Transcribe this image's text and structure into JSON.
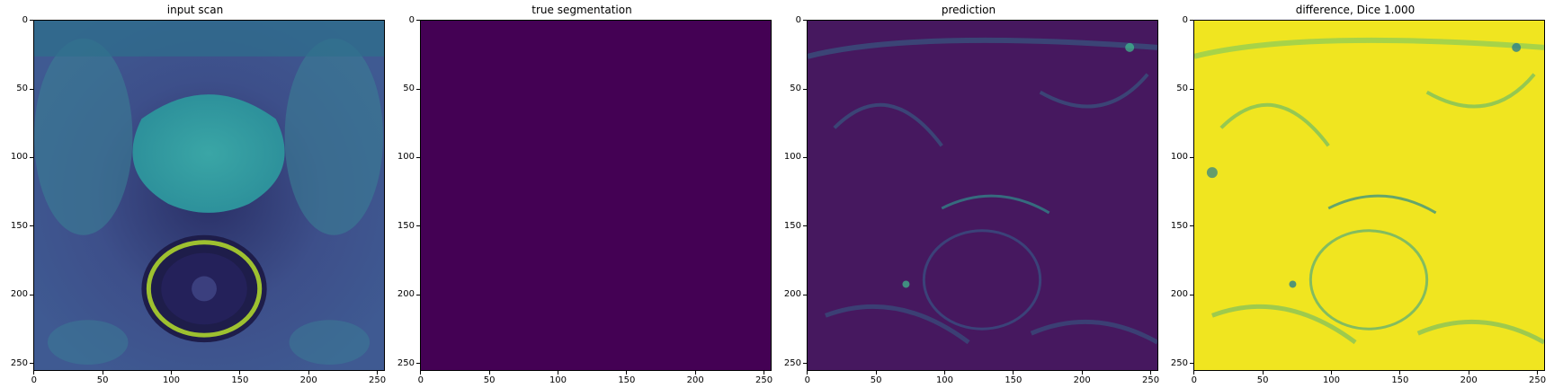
{
  "figure": {
    "panels": [
      {
        "id": "input",
        "title": "input scan",
        "image": "input-scan-image",
        "colormap": "viridis",
        "base_color": "#3d4b8a",
        "accent_color": "#b5de2b"
      },
      {
        "id": "truth",
        "title": "true segmentation",
        "image": "true-segmentation-image",
        "colormap": "viridis",
        "base_color": "#440154",
        "accent_color": "#440154"
      },
      {
        "id": "prediction",
        "title": "prediction",
        "image": "prediction-image",
        "colormap": "viridis",
        "base_color": "#45175f",
        "accent_color": "#2f8f8c"
      },
      {
        "id": "difference",
        "title": "difference, Dice 1.000",
        "image": "difference-image",
        "colormap": "viridis",
        "base_color": "#f4e61e",
        "accent_color": "#2a9d8f"
      }
    ],
    "x_ticks": [
      "0",
      "50",
      "100",
      "150",
      "200",
      "250"
    ],
    "y_ticks": [
      "0",
      "50",
      "100",
      "150",
      "200",
      "250"
    ],
    "axis_range": [
      0,
      255
    ]
  }
}
